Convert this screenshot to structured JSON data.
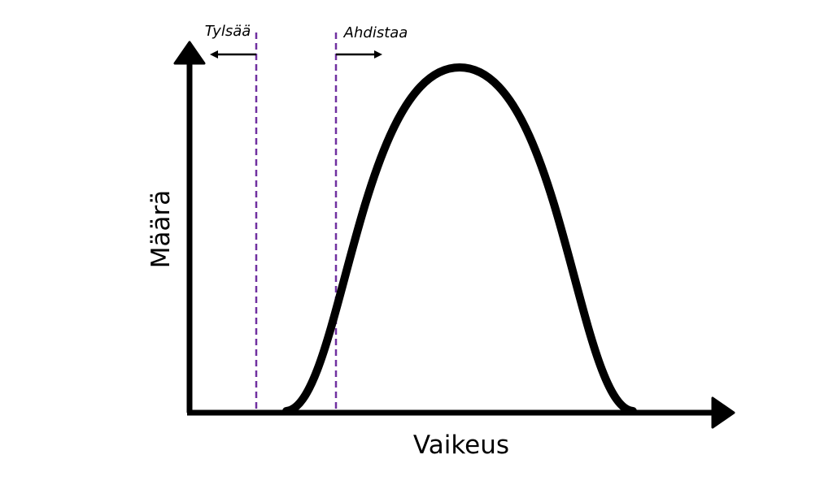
{
  "axes": {
    "y_label": "Määrä",
    "x_label": "Vaikeus"
  },
  "annotations": [
    {
      "label": "Tylsää"
    },
    {
      "label": "Ahdistaa"
    }
  ]
}
